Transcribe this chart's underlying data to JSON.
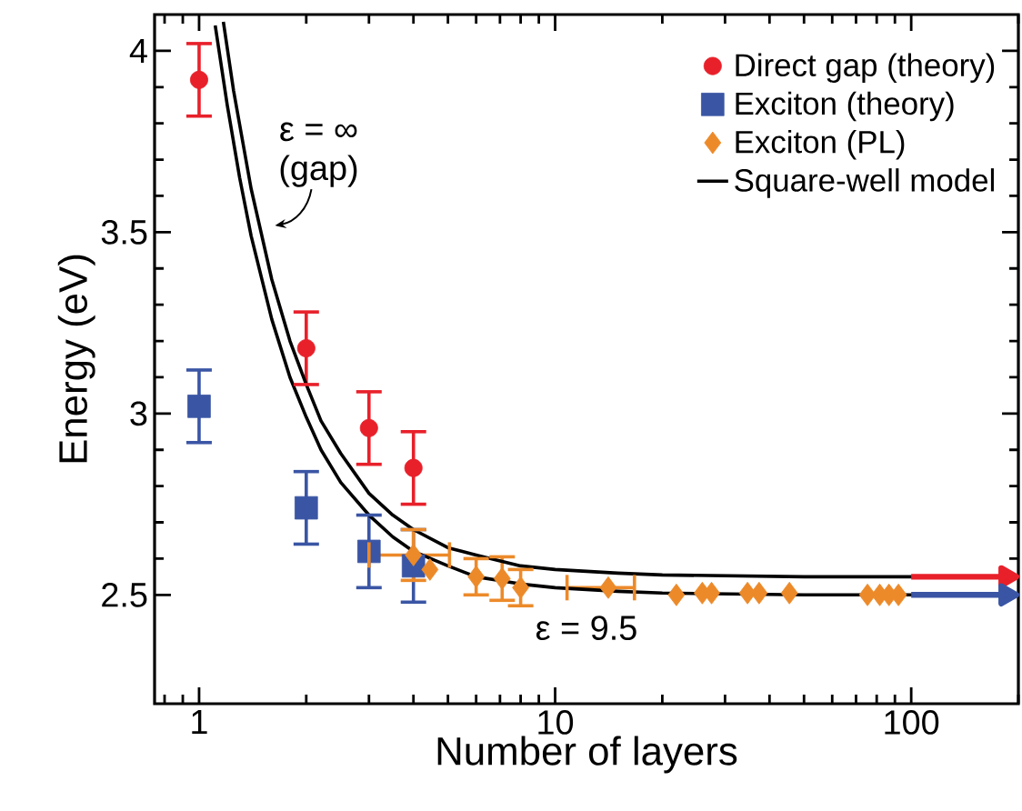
{
  "chart_data": {
    "type": "scatter",
    "xlabel": "Number of layers",
    "ylabel": "Energy (eV)",
    "log": "x",
    "xlim": [
      0.75,
      200
    ],
    "ylim": [
      2.2,
      4.1
    ],
    "xticks": [
      1,
      10,
      100
    ],
    "yticks": [
      2.5,
      3,
      3.5,
      4
    ],
    "grid": false,
    "legend": "top right",
    "series": [
      {
        "name": "Direct gap (theory)",
        "color": "#e8202a",
        "marker": "circle",
        "x": [
          1,
          2,
          3,
          4
        ],
        "values": [
          3.92,
          3.18,
          2.96,
          2.85
        ],
        "errors": [
          0.1,
          0.1,
          0.1,
          0.1
        ]
      },
      {
        "name": "Exciton (theory)",
        "color": "#3a55a4",
        "marker": "square",
        "x": [
          1,
          2,
          3,
          4
        ],
        "values": [
          3.02,
          2.74,
          2.62,
          2.58
        ],
        "errors": [
          0.1,
          0.1,
          0.1,
          0.1
        ]
      },
      {
        "name": "Exciton (PL)",
        "color": "#ec8a2a",
        "marker": "diamond",
        "x": [
          4.0,
          4.45,
          6.0,
          7.1,
          8.0,
          14.1,
          21.9,
          25.9,
          27.5,
          34.7,
          37.4,
          45.5,
          75.4,
          81.6,
          86.6,
          92.1
        ],
        "values": [
          2.61,
          2.57,
          2.55,
          2.545,
          2.52,
          2.52,
          2.5,
          2.505,
          2.505,
          2.505,
          2.505,
          2.505,
          2.5,
          2.5,
          2.5,
          2.5
        ],
        "errors": [
          0.07,
          null,
          0.05,
          0.06,
          0.05,
          null,
          null,
          null,
          null,
          null,
          null,
          null,
          null,
          null,
          null,
          null
        ],
        "xerrors": [
          [
            3.0,
            5.05
          ],
          null,
          null,
          null,
          null,
          [
            10.8,
            16.7
          ],
          null,
          null,
          null,
          null,
          null,
          null,
          null,
          null,
          null,
          null
        ]
      },
      {
        "name": "Square-well model",
        "type": "line",
        "color": "#000000",
        "marker": "none",
        "x": [
          1.11,
          1.2,
          1.3,
          1.4,
          1.6,
          1.8,
          2,
          2.2,
          2.5,
          3,
          3.5,
          4,
          5,
          6,
          8,
          10,
          15,
          20,
          50,
          100,
          200
        ],
        "values": [
          4.07,
          3.85,
          3.65,
          3.49,
          3.26,
          3.1,
          2.99,
          2.9,
          2.81,
          2.72,
          2.66,
          2.62,
          2.58,
          2.55,
          2.53,
          2.52,
          2.51,
          2.505,
          2.5,
          2.5,
          2.5
        ]
      },
      {
        "type": "line",
        "color": "#000000",
        "marker": "none",
        "x": [
          1.17,
          1.25,
          1.4,
          1.6,
          1.8,
          2,
          2.2,
          2.5,
          3,
          3.5,
          4,
          5,
          6,
          8,
          10,
          15,
          20,
          50,
          100,
          200
        ],
        "values": [
          4.08,
          3.89,
          3.62,
          3.37,
          3.2,
          3.08,
          2.98,
          2.89,
          2.78,
          2.72,
          2.68,
          2.63,
          2.61,
          2.58,
          2.57,
          2.56,
          2.555,
          2.55,
          2.55,
          2.55
        ]
      },
      {
        "type": "line",
        "color": "#e8202a",
        "marker": "triangle",
        "x": [
          100,
          185
        ],
        "values": [
          2.55,
          2.55
        ]
      },
      {
        "type": "line",
        "color": "#3a55a4",
        "marker": "triangle",
        "x": [
          100,
          185
        ],
        "values": [
          2.5,
          2.5
        ]
      }
    ],
    "annotations": [
      "ε = ∞",
      "(gap)",
      "ε = 9.5"
    ]
  }
}
